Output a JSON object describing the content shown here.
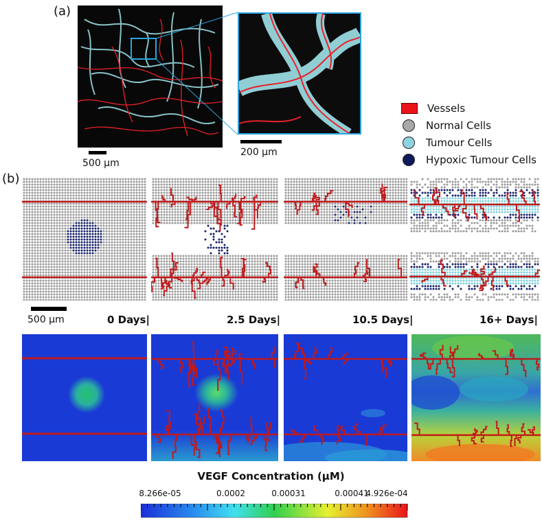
{
  "labels": {
    "panel_a": "(a)",
    "panel_b": "(b)",
    "scale_500_a": "500 μm",
    "scale_200": "200 μm",
    "scale_500_b": "500 μm"
  },
  "legend": [
    {
      "label": "Vessels",
      "kind": "rect",
      "color": "#e8141a"
    },
    {
      "label": "Normal Cells",
      "kind": "circle",
      "color": "#a8a8a8"
    },
    {
      "label": "Tumour Cells",
      "kind": "circle",
      "color": "#8fd3e0"
    },
    {
      "label": "Hypoxic Tumour Cells",
      "kind": "circle",
      "color": "#0f1a5c"
    }
  ],
  "time_labels": [
    "0 Days|",
    "2.5 Days|",
    "10.5 Days|",
    "16+ Days|"
  ],
  "colorbar": {
    "title": "VEGF Concentration (μM)",
    "ticks": [
      "8.266e-05",
      "0.0002",
      "0.00031",
      "0.00041",
      "4.926e-04"
    ],
    "colors": {
      "low": "#1a2fd8",
      "mid": "#22c36a",
      "high": "#e8141a"
    }
  },
  "colors": {
    "vessel": "#c0191b",
    "normal_cell": "#9a9a9a",
    "hypoxic_cell": "#16206a",
    "tumour_cell": "#7fd1dc",
    "vegf_base": "#1a3ad6"
  }
}
